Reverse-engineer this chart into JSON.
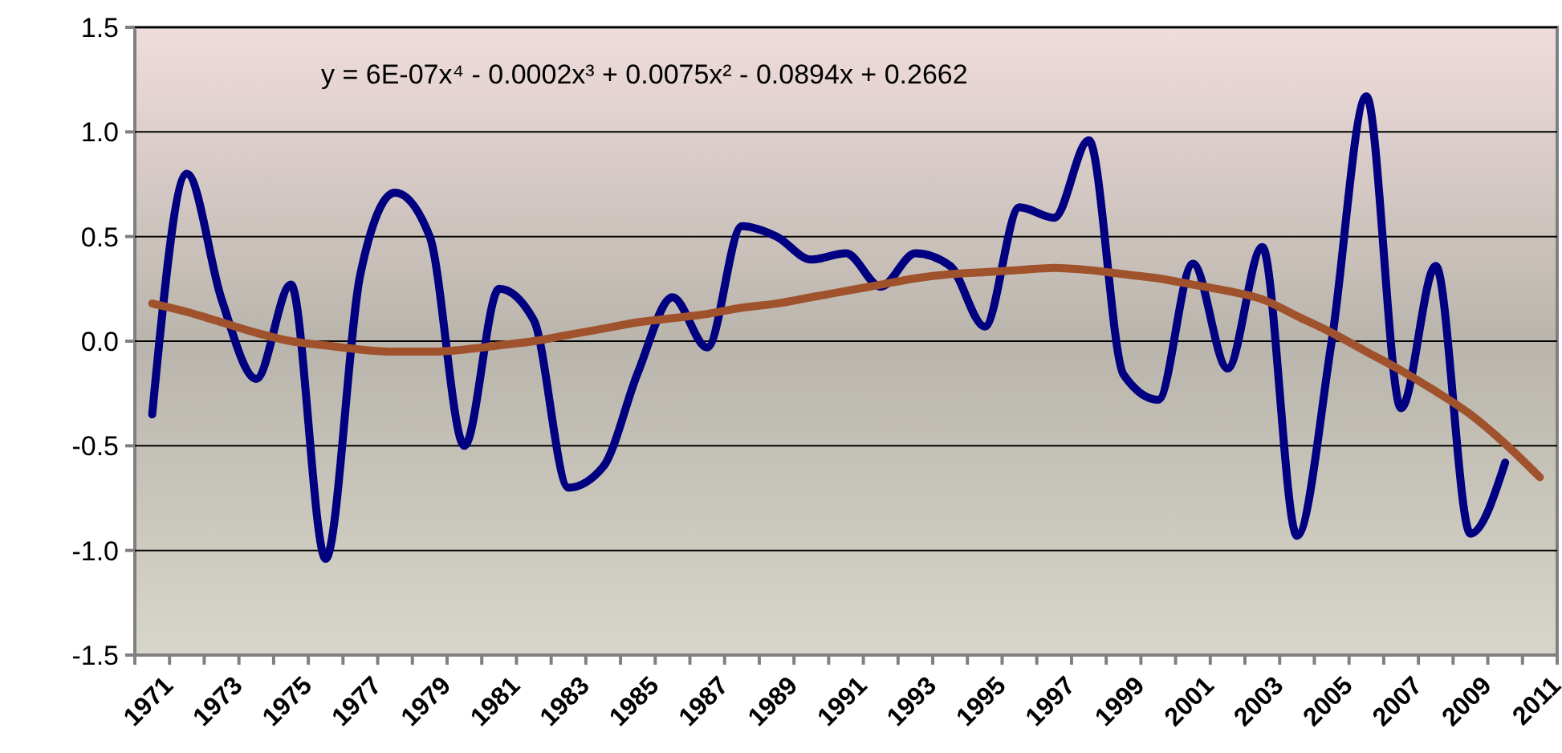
{
  "chart_data": {
    "type": "line",
    "categories": [
      "1971",
      null,
      "1973",
      null,
      "1975",
      null,
      "1977",
      null,
      "1979",
      null,
      "1981",
      null,
      "1983",
      null,
      "1985",
      null,
      "1987",
      null,
      "1989",
      null,
      "1991",
      null,
      "1993",
      null,
      "1995",
      null,
      "1997",
      null,
      "1999",
      null,
      "2001",
      null,
      "2003",
      null,
      "2005",
      null,
      "2007",
      null,
      "2009",
      null,
      "2011"
    ],
    "series": [
      {
        "color": "#000080",
        "values": [
          -0.35,
          0.8,
          0.2,
          -0.18,
          0.27,
          -1.04,
          0.32,
          0.71,
          0.5,
          -0.5,
          0.25,
          0.1,
          -0.7,
          -0.6,
          -0.15,
          0.21,
          -0.03,
          0.55,
          0.5,
          0.39,
          0.42,
          0.26,
          0.42,
          0.36,
          0.07,
          0.64,
          0.59,
          0.96,
          -0.16,
          -0.28,
          0.37,
          -0.13,
          0.45,
          -0.93,
          0.0,
          1.17,
          -0.32,
          0.36,
          -0.92,
          -0.58,
          null
        ]
      },
      {
        "type": "line",
        "color": "#a0522d",
        "values": [
          0.18,
          0.14,
          0.09,
          0.04,
          0.0,
          -0.02,
          -0.04,
          -0.05,
          -0.05,
          -0.04,
          -0.02,
          0.0,
          0.03,
          0.06,
          0.09,
          0.11,
          0.13,
          0.16,
          0.18,
          0.21,
          0.24,
          0.27,
          0.3,
          0.32,
          0.33,
          0.34,
          0.35,
          0.34,
          0.32,
          0.3,
          0.27,
          0.24,
          0.2,
          0.12,
          0.04,
          -0.05,
          -0.14,
          -0.24,
          -0.35,
          -0.49,
          -0.65
        ]
      }
    ],
    "ylim": [
      -1.5,
      1.5
    ],
    "yticks": [
      -1.5,
      {
        "value": -1.0,
        "label": "-1.0"
      },
      -0.5,
      {
        "value": 0,
        "label": "0.0"
      },
      0.5,
      {
        "value": 1.0,
        "label": "1.0"
      },
      1.5
    ],
    "grid": "y",
    "marker": "none",
    "line_style": "solid",
    "annotations": [
      "y = 6E-07x⁴ - 0.0002x³ + 0.0075x² - 0.0894x + 0.2662"
    ]
  }
}
